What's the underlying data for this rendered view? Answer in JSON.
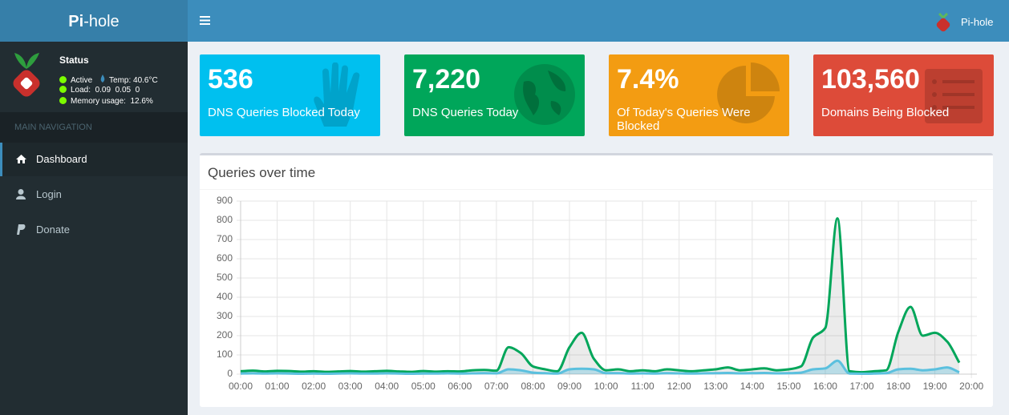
{
  "header": {
    "brand_bold": "Pi",
    "brand_rest": "-hole",
    "user": "Pi-hole"
  },
  "sidebar": {
    "status_title": "Status",
    "active": "Active",
    "temp": "Temp: 40.6°C",
    "load": "Load:  0.09  0.05  0",
    "memory": "Memory usage:  12.6%",
    "nav_header": "MAIN NAVIGATION",
    "nav": [
      "Dashboard",
      "Login",
      "Donate"
    ]
  },
  "boxes": [
    {
      "value": "536",
      "label": "DNS Queries Blocked Today",
      "color": "#00c0ef"
    },
    {
      "value": "7,220",
      "label": "DNS Queries Today",
      "color": "#00a65a"
    },
    {
      "value": "7.4%",
      "label": "Of Today's Queries Were Blocked",
      "color": "#f39c12"
    },
    {
      "value": "103,560",
      "label": "Domains Being Blocked",
      "color": "#dd4b39"
    }
  ],
  "chart_data": {
    "type": "line",
    "title": "Queries over time",
    "x": [
      0,
      20,
      40,
      60,
      80,
      100,
      120,
      140,
      160,
      180,
      200,
      220,
      240,
      260,
      280,
      300,
      320,
      340,
      360,
      380,
      400,
      420,
      440,
      460,
      480,
      500,
      520,
      540,
      560,
      580,
      600,
      620,
      640,
      660,
      680,
      700,
      720,
      740,
      760,
      780,
      800,
      820,
      840,
      860,
      880,
      900,
      920,
      940,
      960,
      980,
      1000,
      1020,
      1040,
      1060,
      1080,
      1100,
      1120,
      1140,
      1160,
      1180
    ],
    "series": [
      {
        "color": "#00a65a",
        "fill": "rgba(0,0,0,0.08)",
        "values": [
          15,
          18,
          14,
          17,
          16,
          13,
          15,
          12,
          14,
          16,
          13,
          15,
          17,
          14,
          12,
          16,
          13,
          15,
          14,
          20,
          22,
          18,
          140,
          110,
          40,
          25,
          15,
          140,
          215,
          80,
          20,
          25,
          15,
          20,
          15,
          25,
          20,
          15,
          20,
          25,
          35,
          20,
          25,
          30,
          20,
          25,
          40,
          190,
          240,
          810,
          15,
          10,
          15,
          20,
          220,
          350,
          200,
          215,
          170,
          60
        ]
      },
      {
        "color": "#5bc0de",
        "fill": "rgba(91,192,222,0.35)",
        "values": [
          3,
          4,
          3,
          4,
          3,
          2,
          3,
          2,
          3,
          4,
          3,
          3,
          4,
          3,
          2,
          3,
          3,
          4,
          3,
          4,
          5,
          4,
          25,
          20,
          8,
          5,
          3,
          25,
          28,
          25,
          5,
          5,
          3,
          4,
          3,
          5,
          4,
          3,
          4,
          5,
          6,
          4,
          5,
          6,
          4,
          5,
          8,
          25,
          30,
          70,
          3,
          2,
          3,
          5,
          25,
          28,
          20,
          25,
          35,
          10
        ]
      }
    ],
    "xlim": [
      0,
      1209
    ],
    "ylim": [
      0,
      900
    ],
    "yticks": [
      0,
      100,
      200,
      300,
      400,
      500,
      600,
      700,
      800,
      900
    ],
    "xticks": [
      {
        "value": 0,
        "label": "00:00"
      },
      {
        "value": 60,
        "label": "01:00"
      },
      {
        "value": 120,
        "label": "02:00"
      },
      {
        "value": 180,
        "label": "03:00"
      },
      {
        "value": 240,
        "label": "04:00"
      },
      {
        "value": 300,
        "label": "05:00"
      },
      {
        "value": 360,
        "label": "06:00"
      },
      {
        "value": 420,
        "label": "07:00"
      },
      {
        "value": 480,
        "label": "08:00"
      },
      {
        "value": 540,
        "label": "09:00"
      },
      {
        "value": 600,
        "label": "10:00"
      },
      {
        "value": 660,
        "label": "11:00"
      },
      {
        "value": 720,
        "label": "12:00"
      },
      {
        "value": 780,
        "label": "13:00"
      },
      {
        "value": 840,
        "label": "14:00"
      },
      {
        "value": 900,
        "label": "15:00"
      },
      {
        "value": 960,
        "label": "16:00"
      },
      {
        "value": 1020,
        "label": "17:00"
      },
      {
        "value": 1080,
        "label": "18:00"
      },
      {
        "value": 1140,
        "label": "19:00"
      },
      {
        "value": 1200,
        "label": "20:00"
      }
    ],
    "grid": true
  }
}
